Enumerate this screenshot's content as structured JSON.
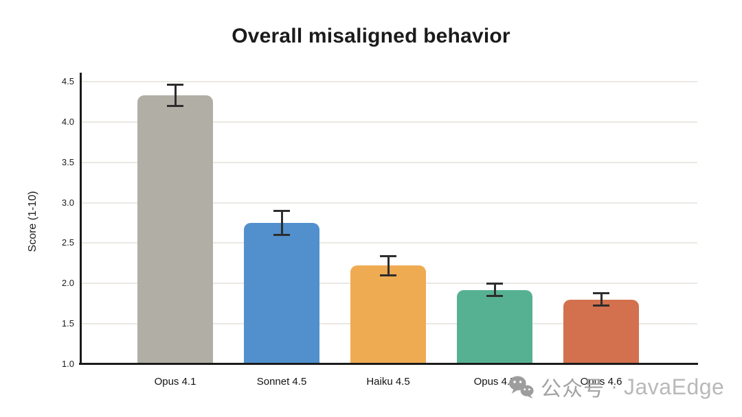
{
  "title": "Overall misaligned behavior",
  "watermark": {
    "icon": "wechat-icon",
    "label": "公众号",
    "separator": "·",
    "brand": "JavaEdge"
  },
  "chart_data": {
    "type": "bar",
    "title": "Overall misaligned behavior",
    "xlabel": "",
    "ylabel": "Score (1-10)",
    "categories": [
      "Opus 4.1",
      "Sonnet 4.5",
      "Haiku 4.5",
      "Opus 4.5",
      "Opus 4.6"
    ],
    "values": [
      4.33,
      2.75,
      2.22,
      1.92,
      1.8
    ],
    "errors": [
      0.14,
      0.15,
      0.12,
      0.08,
      0.08
    ],
    "bar_colors": [
      "#b1aea6",
      "#5190cd",
      "#efab52",
      "#56b192",
      "#d3714e"
    ],
    "ylim": [
      1.0,
      4.5
    ],
    "yticks": [
      1.0,
      1.5,
      2.0,
      2.5,
      3.0,
      3.5,
      4.0,
      4.5
    ],
    "grid": true,
    "gridline_color": "#ebe8e3",
    "axis_color": "#1a1a1a",
    "error_bar_color": "#2d2d2d",
    "legend": "none"
  }
}
